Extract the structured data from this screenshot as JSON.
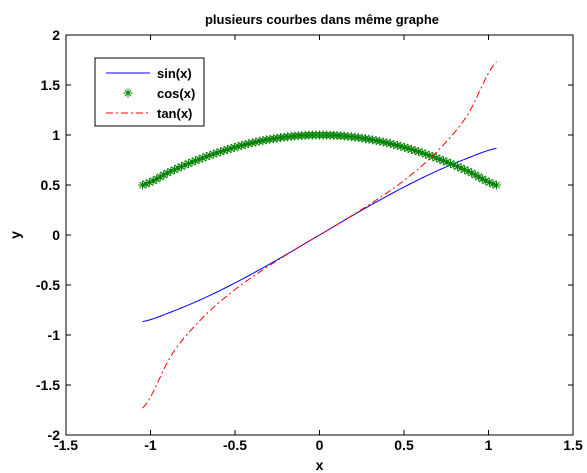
{
  "chart_data": {
    "type": "line",
    "title": "plusieurs courbes dans même graphe",
    "xlabel": "x",
    "ylabel": "y",
    "xlim": [
      -1.5,
      1.5
    ],
    "ylim": [
      -2,
      2
    ],
    "xticks": [
      "-1.5",
      "-1",
      "-0.5",
      "0",
      "0.5",
      "1",
      "1.5"
    ],
    "yticks": [
      "-2",
      "-1.5",
      "-1",
      "-0.5",
      "0",
      "0.5",
      "1",
      "1.5",
      "2"
    ],
    "grid": false,
    "legend_position": "top-left",
    "x": [
      -1.0472,
      -0.8727,
      -0.6981,
      -0.5236,
      -0.3491,
      -0.1745,
      0,
      0.1745,
      0.3491,
      0.5236,
      0.6981,
      0.8727,
      1.0472
    ],
    "series": [
      {
        "name": "sin(x)",
        "color": "#0000ff",
        "style": "solid",
        "marker": "none",
        "values": [
          -0.866,
          -0.766,
          -0.643,
          -0.5,
          -0.342,
          -0.174,
          0,
          0.174,
          0.342,
          0.5,
          0.643,
          0.766,
          0.866
        ]
      },
      {
        "name": "cos(x)",
        "color": "#008000",
        "style": "none",
        "marker": "asterisk",
        "values": [
          0.5,
          0.643,
          0.766,
          0.866,
          0.94,
          0.985,
          1,
          0.985,
          0.94,
          0.866,
          0.766,
          0.643,
          0.5
        ]
      },
      {
        "name": "tan(x)",
        "color": "#ff0000",
        "style": "dashdot",
        "marker": "none",
        "values": [
          -1.732,
          -1.192,
          -0.839,
          -0.577,
          -0.364,
          -0.176,
          0,
          0.176,
          0.364,
          0.577,
          0.839,
          1.192,
          1.732
        ]
      }
    ]
  }
}
